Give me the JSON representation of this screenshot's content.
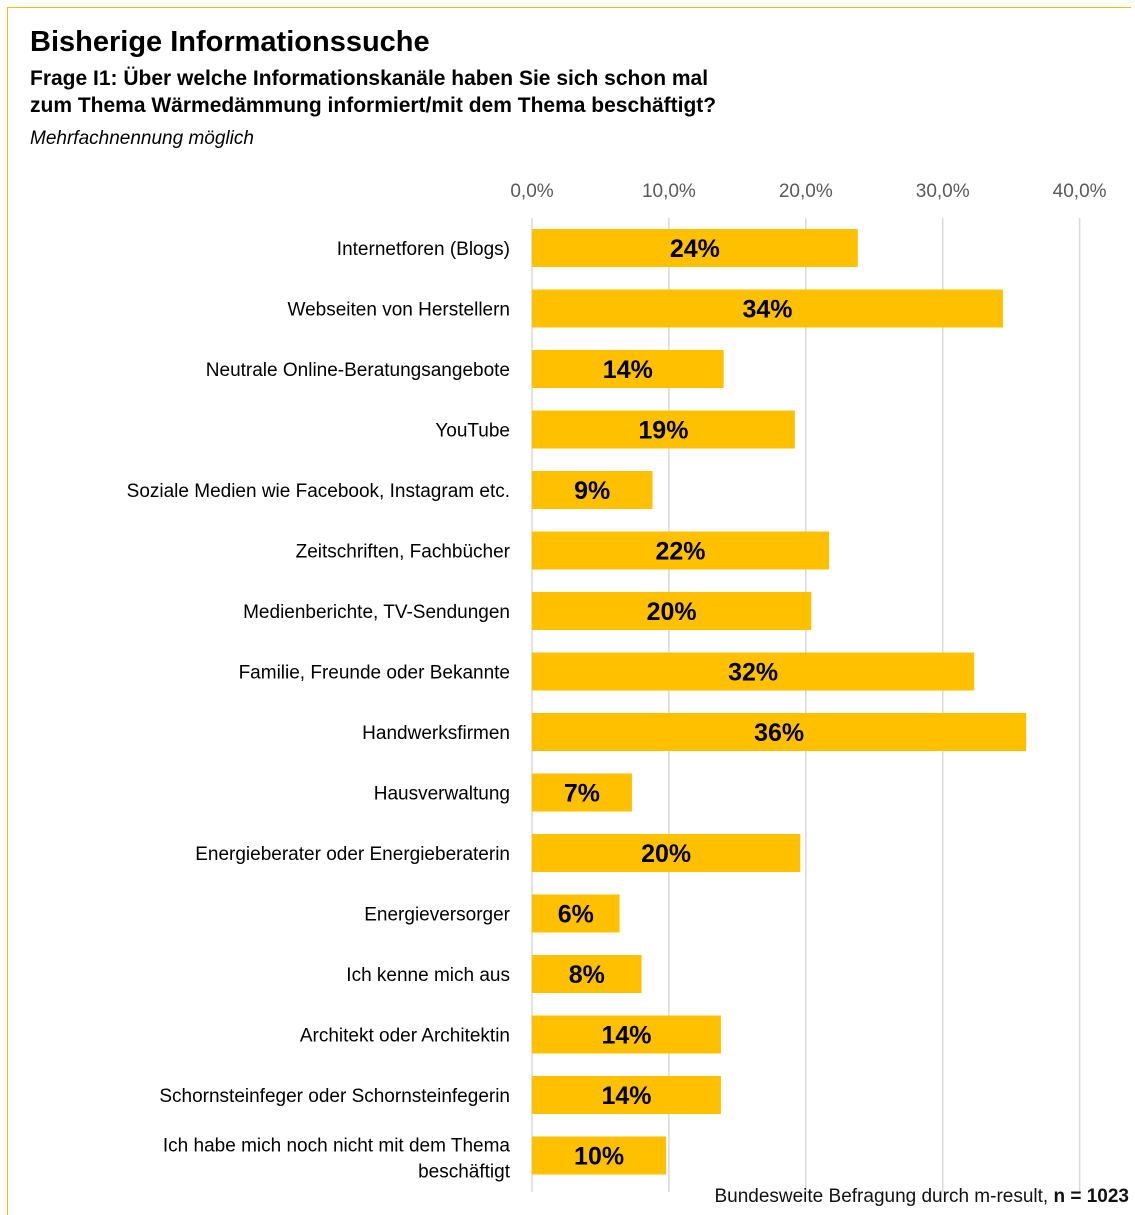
{
  "title": "Bisherige Informationssuche",
  "question_line1": "Frage I1: Über welche Informationskanäle haben Sie sich schon mal",
  "question_line2": "zum Thema Wärmedämmung informiert/mit dem Thema beschäftigt?",
  "subtitle": "Mehrfachnennung möglich",
  "footnote_text": "Bundesweite Befragung durch m-result, ",
  "footnote_n": "n = 1023",
  "colors": {
    "bar": "#FFC000",
    "grid": "#D9D9D9",
    "frame": "#F2C200"
  },
  "chart_data": {
    "type": "bar",
    "orientation": "horizontal",
    "categories": [
      "Internetforen (Blogs)",
      "Webseiten von Herstellern",
      "Neutrale Online-Beratungsangebote",
      "YouTube",
      "Soziale Medien wie Facebook, Instagram etc.",
      "Zeitschriften, Fachbücher",
      "Medienberichte, TV-Sendungen",
      "Familie, Freunde oder Bekannte",
      "Handwerksfirmen",
      "Hausverwaltung",
      "Energieberater oder Energieberaterin",
      "Energieversorger",
      "Ich kenne mich aus",
      "Architekt oder Architektin",
      "Schornsteinfeger oder Schornsteinfegerin",
      "Ich habe mich noch nicht mit dem Thema beschäftigt"
    ],
    "values": [
      23.8,
      34.4,
      14.0,
      19.2,
      8.8,
      21.7,
      20.4,
      32.3,
      36.1,
      7.3,
      19.6,
      6.4,
      8.0,
      13.8,
      13.8,
      9.8
    ],
    "data_labels": [
      "24%",
      "34%",
      "14%",
      "19%",
      "9%",
      "22%",
      "20%",
      "32%",
      "36%",
      "7%",
      "20%",
      "6%",
      "8%",
      "14%",
      "14%",
      "10%"
    ],
    "x_ticks": [
      0,
      10,
      20,
      30,
      40
    ],
    "x_tick_labels": [
      "0,0%",
      "10,0%",
      "20,0%",
      "30,0%",
      "40,0%"
    ],
    "xlim": [
      0,
      40
    ],
    "xaxis_position": "top",
    "grid": true,
    "legend": "none"
  }
}
